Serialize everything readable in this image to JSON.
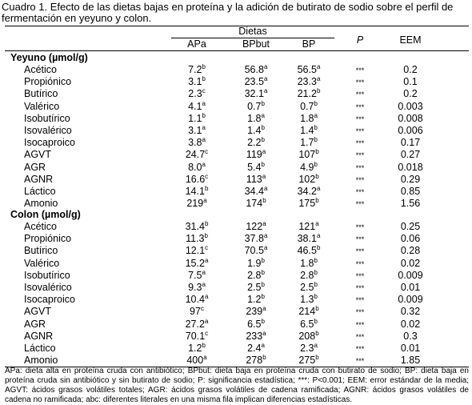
{
  "caption": "Cuadro 1. Efecto de las dietas bajas en proteína y la adición de butirato de sodio sobre el perfil de fermentación en yeyuno y colon.",
  "header": {
    "dietas": "Dietas",
    "apa": "APa",
    "bpbut": "BPbut",
    "bp": "BP",
    "p": "P",
    "eem": "EEM"
  },
  "sections": [
    {
      "title": "Yeyuno (µmol/g)",
      "rows": [
        {
          "label": "Acético",
          "apa": "7.2",
          "apa_sup": "b",
          "bpbut": "56.8",
          "bpbut_sup": "a",
          "bp": "56.5",
          "bp_sup": "a",
          "p": "***",
          "eem": "0.2"
        },
        {
          "label": "Propiónico",
          "apa": "3.1",
          "apa_sup": "b",
          "bpbut": "23.5",
          "bpbut_sup": "a",
          "bp": "23.3",
          "bp_sup": "a",
          "p": "***",
          "eem": "0.1"
        },
        {
          "label": "Butírico",
          "apa": "2.3",
          "apa_sup": "c",
          "bpbut": "32.1",
          "bpbut_sup": "a",
          "bp": "21.2",
          "bp_sup": "b",
          "p": "***",
          "eem": "0.2"
        },
        {
          "label": "Valérico",
          "apa": "4.1",
          "apa_sup": "a",
          "bpbut": "0.7",
          "bpbut_sup": "b",
          "bp": "0.7",
          "bp_sup": "b",
          "p": "***",
          "eem": "0.003"
        },
        {
          "label": "Isobutírico",
          "apa": "1.1",
          "apa_sup": "b",
          "bpbut": "1.8",
          "bpbut_sup": "a",
          "bp": "1.8",
          "bp_sup": "a",
          "p": "***",
          "eem": "0.008"
        },
        {
          "label": "Isovalérico",
          "apa": "3.1",
          "apa_sup": "a",
          "bpbut": "1.4",
          "bpbut_sup": "b",
          "bp": "1.4",
          "bp_sup": "b",
          "p": "***",
          "eem": "0.006"
        },
        {
          "label": "Isocaproico",
          "apa": "3.8",
          "apa_sup": "a",
          "bpbut": "2.2",
          "bpbut_sup": "b",
          "bp": "1.7",
          "bp_sup": "b",
          "p": "***",
          "eem": "0.17"
        },
        {
          "label": "AGVT",
          "apa": "24.7",
          "apa_sup": "c",
          "bpbut": "119",
          "bpbut_sup": "a",
          "bp": "107",
          "bp_sup": "b",
          "p": "***",
          "eem": "0.27"
        },
        {
          "label": "AGR",
          "apa": "8.0",
          "apa_sup": "a",
          "bpbut": "5.4",
          "bpbut_sup": "b",
          "bp": "4.9",
          "bp_sup": "b",
          "p": "***",
          "eem": "0.018"
        },
        {
          "label": "AGNR",
          "apa": "16.6",
          "apa_sup": "c",
          "bpbut": "113",
          "bpbut_sup": "a",
          "bp": "102",
          "bp_sup": "b",
          "p": "***",
          "eem": "0.29"
        },
        {
          "label": "Láctico",
          "apa": "14.1",
          "apa_sup": "b",
          "bpbut": "34.4",
          "bpbut_sup": "a",
          "bp": "34.2",
          "bp_sup": "a",
          "p": "***",
          "eem": "0.85"
        },
        {
          "label": "Amonio",
          "apa": "219",
          "apa_sup": "a",
          "bpbut": "174",
          "bpbut_sup": "b",
          "bp": "175",
          "bp_sup": "b",
          "p": "***",
          "eem": "1.56"
        }
      ]
    },
    {
      "title": "Colon (µmol/g)",
      "rows": [
        {
          "label": "Acético",
          "apa": "31.4",
          "apa_sup": "b",
          "bpbut": "122",
          "bpbut_sup": "a",
          "bp": "121",
          "bp_sup": "a",
          "p": "***",
          "eem": "0.25"
        },
        {
          "label": "Propiónico",
          "apa": "11.3",
          "apa_sup": "b",
          "bpbut": "37.8",
          "bpbut_sup": "a",
          "bp": "38.1",
          "bp_sup": "a",
          "p": "***",
          "eem": "0.06"
        },
        {
          "label": "Butírico",
          "apa": "12.1",
          "apa_sup": "c",
          "bpbut": "70.5",
          "bpbut_sup": "a",
          "bp": "46.5",
          "bp_sup": "b",
          "p": "***",
          "eem": "0.28"
        },
        {
          "label": "Valérico",
          "apa": "15.2",
          "apa_sup": "a",
          "bpbut": "1.9",
          "bpbut_sup": "b",
          "bp": "1.8",
          "bp_sup": "b",
          "p": "***",
          "eem": "0.02"
        },
        {
          "label": "Isobutírico",
          "apa": "7.5",
          "apa_sup": "a",
          "bpbut": "2.8",
          "bpbut_sup": "b",
          "bp": "2.8",
          "bp_sup": "b",
          "p": "***",
          "eem": "0.009"
        },
        {
          "label": "Isovalérico",
          "apa": "9.3",
          "apa_sup": "a",
          "bpbut": "2.5",
          "bpbut_sup": "b",
          "bp": "2.5",
          "bp_sup": "b",
          "p": "***",
          "eem": "0.01"
        },
        {
          "label": "Isocaproico",
          "apa": "10.4",
          "apa_sup": "a",
          "bpbut": "1.2",
          "bpbut_sup": "b",
          "bp": "1.3",
          "bp_sup": "b",
          "p": "***",
          "eem": "0.009"
        },
        {
          "label": "AGVT",
          "apa": "97",
          "apa_sup": "c",
          "bpbut": "239",
          "bpbut_sup": "a",
          "bp": "214",
          "bp_sup": "b",
          "p": "***",
          "eem": "0.32"
        },
        {
          "label": "AGR",
          "apa": "27.2",
          "apa_sup": "a",
          "bpbut": "6.5",
          "bpbut_sup": "b",
          "bp": "6.5",
          "bp_sup": "b",
          "p": "***",
          "eem": "0.02"
        },
        {
          "label": "AGNR",
          "apa": "70.1",
          "apa_sup": "c",
          "bpbut": "233",
          "bpbut_sup": "a",
          "bp": "208",
          "bp_sup": "b",
          "p": "***",
          "eem": "0.3"
        },
        {
          "label": "Láctico",
          "apa": "1.2",
          "apa_sup": "b",
          "bpbut": "2.4",
          "bpbut_sup": "a",
          "bp": "2.3",
          "bp_sup": "a",
          "p": "***",
          "eem": "0.01"
        },
        {
          "label": "Amonio",
          "apa": "400",
          "apa_sup": "a",
          "bpbut": "278",
          "bpbut_sup": "b",
          "bp": "275",
          "bp_sup": "b",
          "p": "***",
          "eem": "1.85"
        }
      ]
    }
  ],
  "footnote": "APa: dieta alta en proteína cruda con antibiótico; BPbut: dieta baja en proteína cruda con butirato de sodio; BP: dieta baja en proteína cruda sin antibiótico y sin butirato de sodio; P: significancia estadística; ***: P<0.001; EEM: error estándar de la media; AGVT: ácidos grasos volátiles totales; AGR: ácidos grasos volátiles de cadena ramificada; AGNR: ácidos grasos volátiles de cadena no ramificada; abc: diferentes literales en una misma fila implican diferencias estadísticas."
}
